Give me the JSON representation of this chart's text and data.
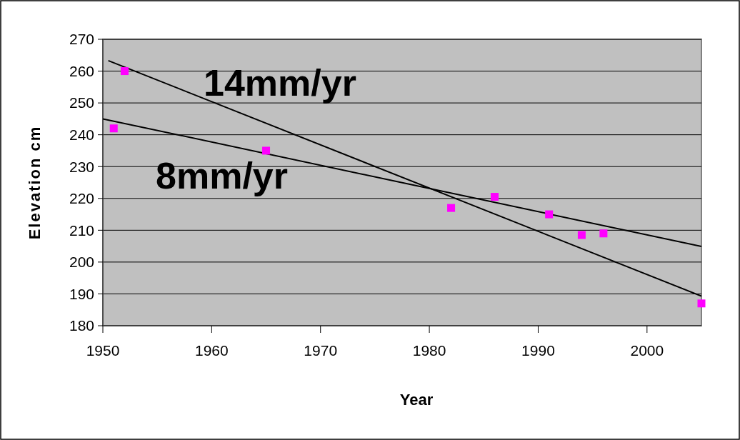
{
  "chart_data": {
    "type": "scatter",
    "xlabel": "Year",
    "ylabel": "Elevation cm",
    "xlim": [
      1950,
      2005
    ],
    "xticks": [
      1950,
      1960,
      1970,
      1980,
      1990,
      2000
    ],
    "ylim": [
      180,
      270
    ],
    "yticks": [
      180,
      190,
      200,
      210,
      220,
      230,
      240,
      250,
      260,
      270
    ],
    "grid": "y",
    "marker": "square",
    "series": [
      {
        "color": "#ff00ff",
        "x": [
          1951,
          1952,
          1965,
          1982,
          1986,
          1991,
          1994,
          1996,
          2005
        ],
        "values": [
          242,
          260,
          235,
          217,
          220.5,
          215,
          208.5,
          209,
          187
        ]
      },
      {
        "type": "line",
        "color": "#000000",
        "marker": "none",
        "x": [
          1950.5,
          2005
        ],
        "values": [
          263.3,
          189.3
        ]
      },
      {
        "type": "line",
        "color": "#000000",
        "marker": "none",
        "x": [
          1950,
          2005
        ],
        "values": [
          245,
          204.9
        ]
      }
    ],
    "annotations": [
      "14mm/yr",
      "8mm/yr"
    ]
  }
}
